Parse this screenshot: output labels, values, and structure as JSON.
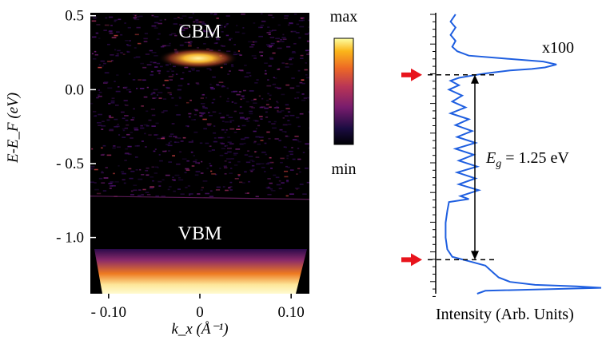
{
  "chart_data": [
    {
      "type": "heatmap",
      "title": "",
      "xlabel": "k_x (Å⁻¹)",
      "ylabel": "E-E_F (eV)",
      "xlim": [
        -0.12,
        0.12
      ],
      "ylim": [
        -1.38,
        0.52
      ],
      "xticks": [
        -0.1,
        0,
        0.1
      ],
      "xtick_labels": [
        "- 0.10",
        "0",
        "0.10"
      ],
      "yticks": [
        0.5,
        0.0,
        -0.5,
        -1.0
      ],
      "ytick_labels": [
        "0.5",
        "0.0",
        "- 0.5",
        "- 1.0"
      ],
      "colorbar": {
        "colormap": "inferno",
        "max_label": "max",
        "min_label": "min"
      },
      "annotations": [
        {
          "text": "CBM",
          "x": 0.0,
          "y": 0.38
        },
        {
          "text": "VBM",
          "x": 0.0,
          "y": -1.0
        }
      ],
      "features": [
        {
          "name": "CBM",
          "center_kx": -0.005,
          "center_E": 0.19
        },
        {
          "name": "VBM",
          "top_E": -1.15,
          "bottom_E": -1.38
        }
      ],
      "data_boundary_E": -0.72
    },
    {
      "type": "line",
      "title": "",
      "xlabel": "Intensity (Arb. Units)",
      "ylabel": "",
      "ylim": [
        -1.38,
        0.52
      ],
      "series": [
        {
          "name": "",
          "color": "#1f5fe0",
          "points": [
            [
              0.12,
              0.51
            ],
            [
              0.09,
              0.46
            ],
            [
              0.12,
              0.42
            ],
            [
              0.09,
              0.37
            ],
            [
              0.12,
              0.33
            ],
            [
              0.1,
              0.29
            ],
            [
              0.13,
              0.26
            ],
            [
              0.2,
              0.23
            ],
            [
              0.42,
              0.21
            ],
            [
              0.65,
              0.19
            ],
            [
              0.73,
              0.17
            ],
            [
              0.66,
              0.15
            ],
            [
              0.58,
              0.14
            ],
            [
              0.45,
              0.13
            ],
            [
              0.3,
              0.11
            ],
            [
              0.22,
              0.095
            ],
            [
              0.14,
              0.08
            ],
            [
              0.09,
              0.06
            ],
            [
              0.14,
              0.03
            ],
            [
              0.08,
              0.0
            ],
            [
              0.16,
              -0.04
            ],
            [
              0.1,
              -0.08
            ],
            [
              0.18,
              -0.12
            ],
            [
              0.09,
              -0.16
            ],
            [
              0.2,
              -0.2
            ],
            [
              0.12,
              -0.24
            ],
            [
              0.22,
              -0.28
            ],
            [
              0.13,
              -0.32
            ],
            [
              0.24,
              -0.36
            ],
            [
              0.12,
              -0.4
            ],
            [
              0.23,
              -0.44
            ],
            [
              0.14,
              -0.48
            ],
            [
              0.25,
              -0.52
            ],
            [
              0.13,
              -0.56
            ],
            [
              0.24,
              -0.6
            ],
            [
              0.14,
              -0.64
            ],
            [
              0.26,
              -0.68
            ],
            [
              0.15,
              -0.72
            ],
            [
              0.2,
              -0.74
            ],
            [
              0.08,
              -0.76
            ],
            [
              0.07,
              -0.82
            ],
            [
              0.06,
              -0.9
            ],
            [
              0.06,
              -1.0
            ],
            [
              0.07,
              -1.08
            ],
            [
              0.1,
              -1.13
            ],
            [
              0.2,
              -1.16
            ],
            [
              0.3,
              -1.19
            ],
            [
              0.34,
              -1.23
            ],
            [
              0.38,
              -1.27
            ],
            [
              0.45,
              -1.3
            ],
            [
              0.6,
              -1.32
            ],
            [
              0.85,
              -1.33
            ],
            [
              1.0,
              -1.34
            ],
            [
              0.3,
              -1.36
            ],
            [
              0.25,
              -1.38
            ]
          ]
        }
      ],
      "scale_label": "x100",
      "scale_split_E": -0.75,
      "gap": {
        "label_base": "E",
        "label_sub": "g",
        "label_value": " = 1.25 eV",
        "upper_E": 0.1,
        "lower_E": -1.15
      },
      "arrow_color": "#e8141c"
    }
  ]
}
